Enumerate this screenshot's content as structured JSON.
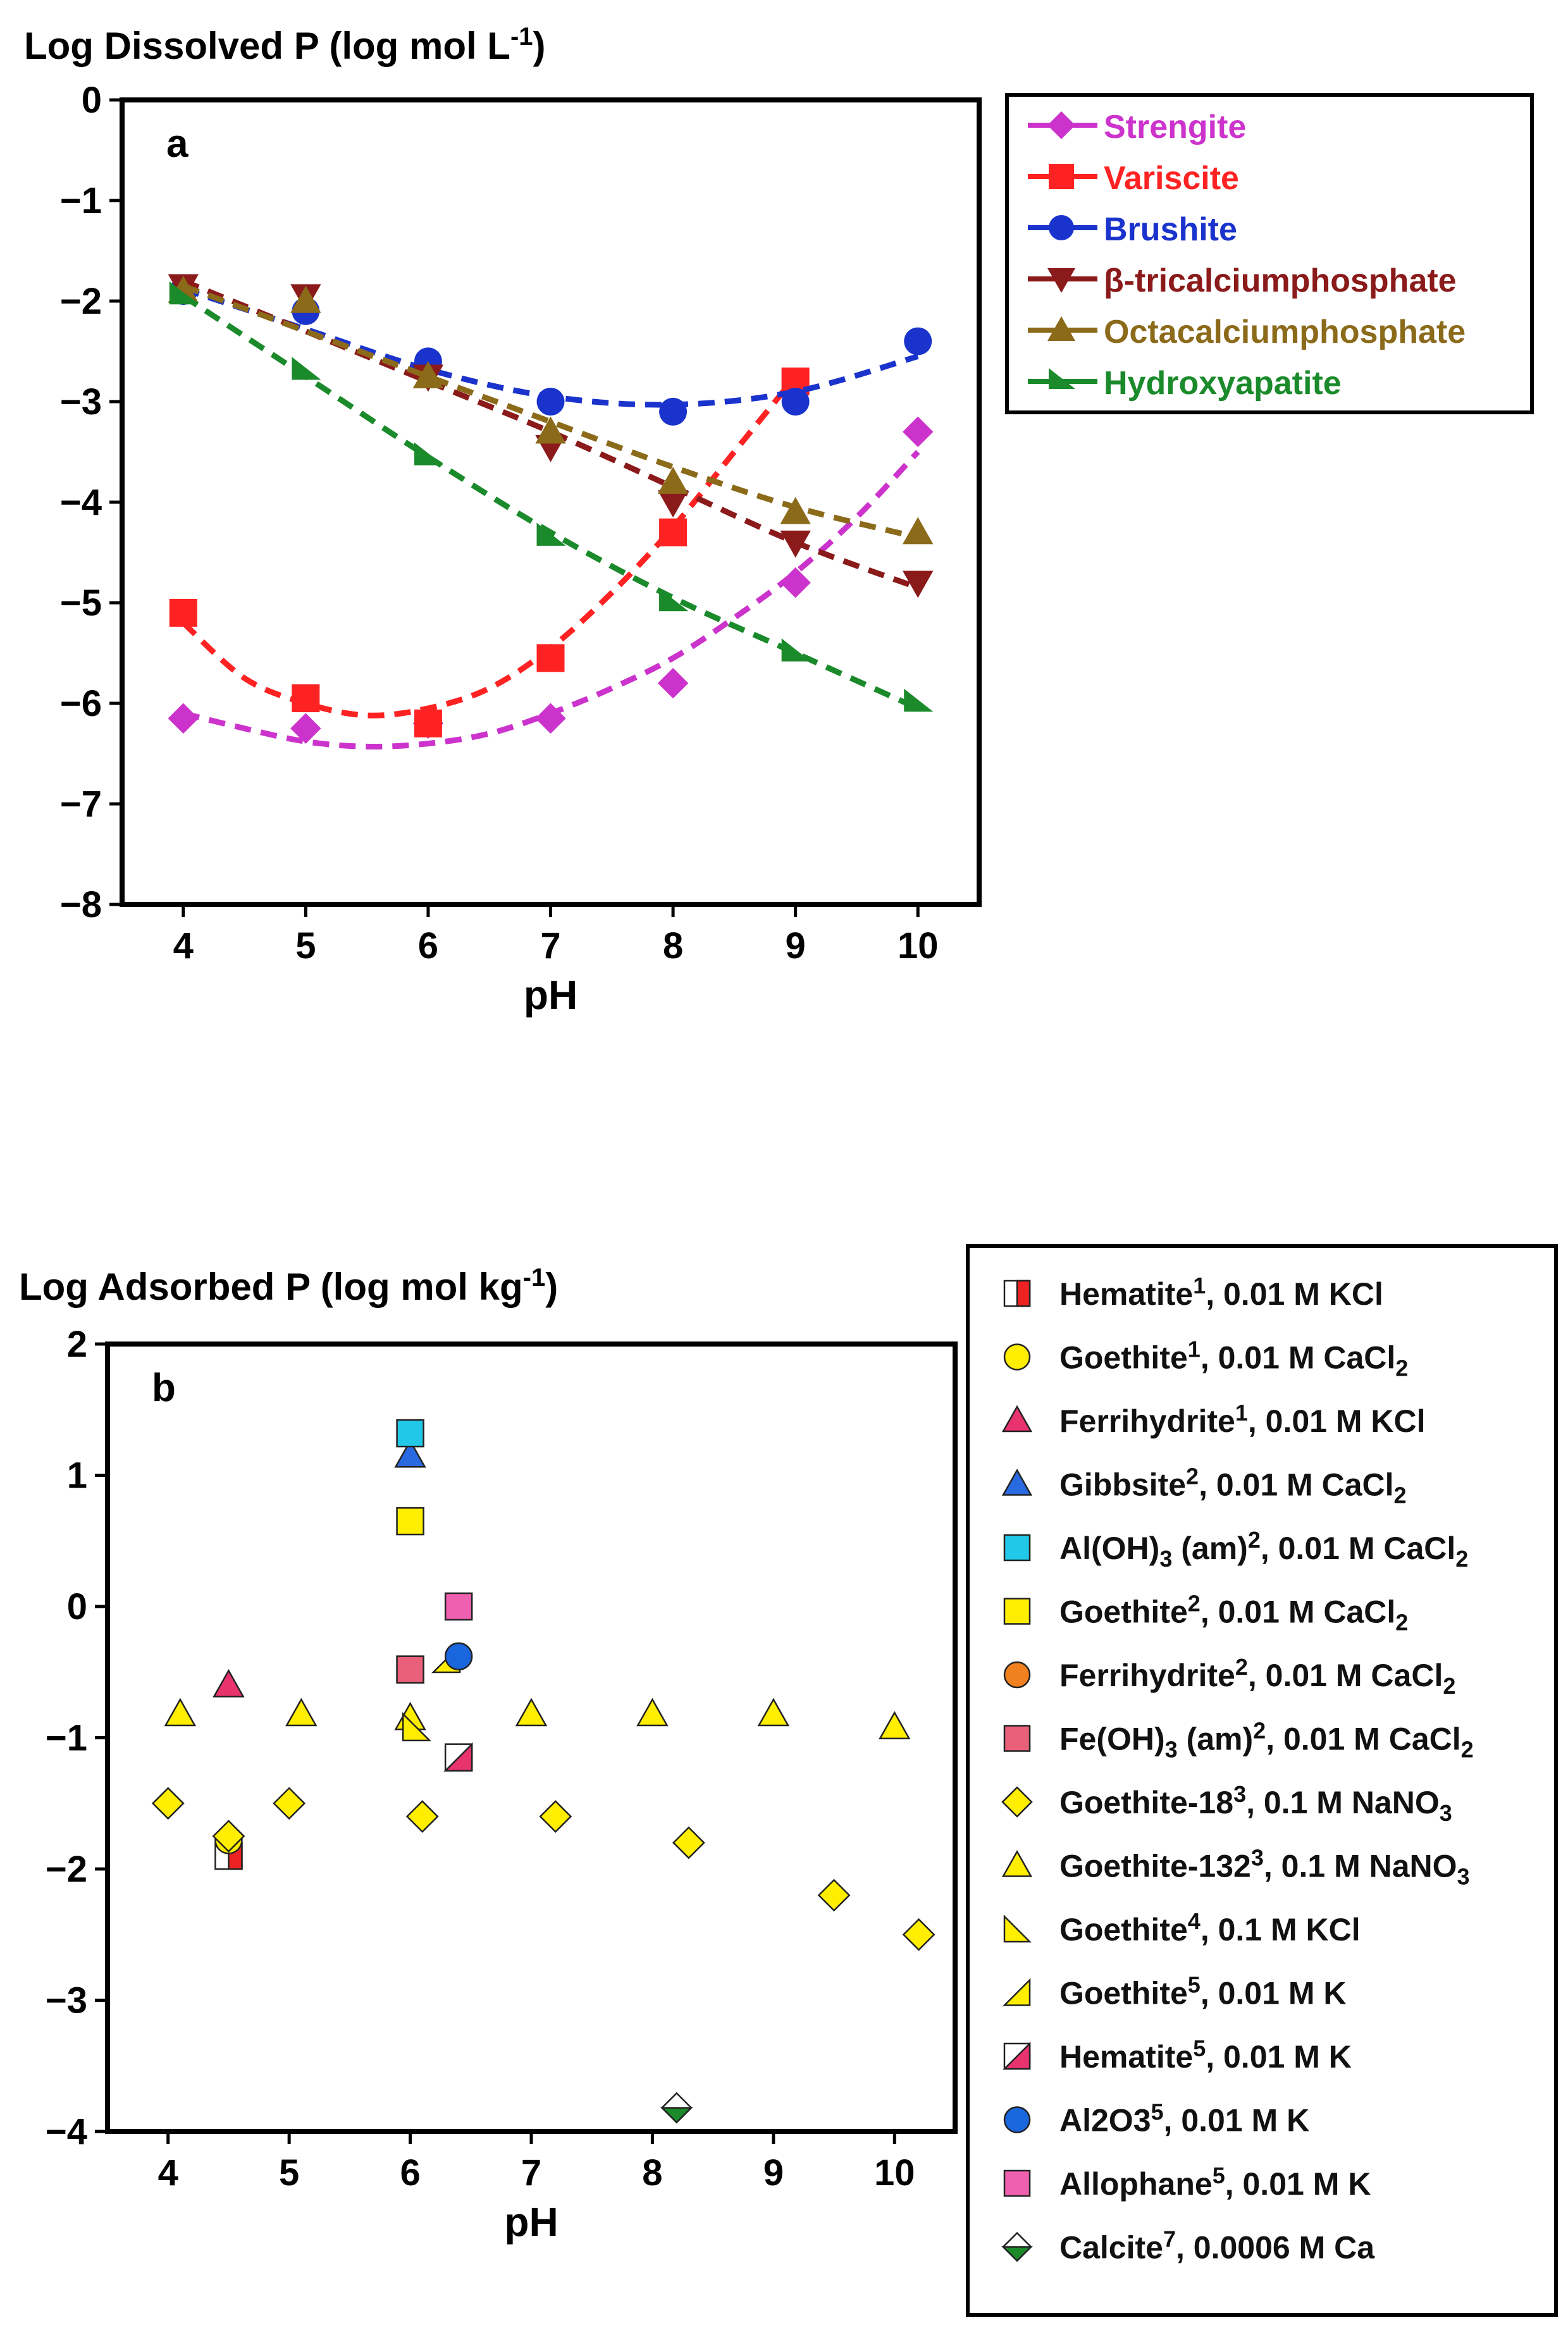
{
  "chart_data": [
    {
      "type": "line",
      "panel_label": "a",
      "ylabel": "Log Dissolved P (log mol L",
      "ylabel_sup": "-1",
      "ylabel_close": ")",
      "xlabel": "pH",
      "xlim": [
        3.5,
        10.5
      ],
      "ylim": [
        -8,
        0
      ],
      "xticks": [
        "4",
        "5",
        "6",
        "7",
        "8",
        "9",
        "10"
      ],
      "yticks": [
        "0",
        "−1",
        "−2",
        "−3",
        "−4",
        "−5",
        "−6",
        "−7",
        "−8"
      ],
      "legend_position": "outside-right",
      "series": [
        {
          "name": "Strengite",
          "color": "#cc33cc",
          "marker": "diamond",
          "points": [
            [
              4,
              -6.15
            ],
            [
              5,
              -6.25
            ],
            [
              6,
              -6.2
            ],
            [
              7,
              -6.15
            ],
            [
              8,
              -5.8
            ],
            [
              9,
              -4.8
            ],
            [
              10,
              -3.3
            ]
          ],
          "fit": [
            [
              4,
              -6.1
            ],
            [
              4.5,
              -6.25
            ],
            [
              5,
              -6.38
            ],
            [
              5.5,
              -6.43
            ],
            [
              6,
              -6.4
            ],
            [
              6.5,
              -6.3
            ],
            [
              7,
              -6.1
            ],
            [
              7.5,
              -5.85
            ],
            [
              8,
              -5.55
            ],
            [
              8.5,
              -5.15
            ],
            [
              9,
              -4.7
            ],
            [
              9.5,
              -4.15
            ],
            [
              10,
              -3.5
            ]
          ]
        },
        {
          "name": "Variscite",
          "color": "#ff2222",
          "marker": "square",
          "points": [
            [
              4,
              -5.1
            ],
            [
              5,
              -5.95
            ],
            [
              6,
              -6.2
            ],
            [
              7,
              -5.55
            ],
            [
              8,
              -4.3
            ],
            [
              9,
              -2.8
            ]
          ],
          "fit": [
            [
              4,
              -5.2
            ],
            [
              4.5,
              -5.75
            ],
            [
              5,
              -6.0
            ],
            [
              5.5,
              -6.12
            ],
            [
              6,
              -6.05
            ],
            [
              6.5,
              -5.85
            ],
            [
              7,
              -5.45
            ],
            [
              7.5,
              -4.9
            ],
            [
              8,
              -4.25
            ],
            [
              8.5,
              -3.5
            ],
            [
              9,
              -2.75
            ]
          ]
        },
        {
          "name": "Brushite",
          "color": "#1a33cc",
          "marker": "circle",
          "points": [
            [
              4,
              -1.9
            ],
            [
              5,
              -2.1
            ],
            [
              6,
              -2.6
            ],
            [
              7,
              -3.0
            ],
            [
              8,
              -3.1
            ],
            [
              9,
              -3.0
            ],
            [
              10,
              -2.4
            ]
          ],
          "fit": [
            [
              4,
              -1.88
            ],
            [
              5,
              -2.28
            ],
            [
              6,
              -2.68
            ],
            [
              7,
              -2.95
            ],
            [
              8,
              -3.03
            ],
            [
              9,
              -2.9
            ],
            [
              10,
              -2.55
            ]
          ]
        },
        {
          "name": "β-tricalciumphosphate",
          "color": "#8b1a1a",
          "marker": "triangle-down",
          "points": [
            [
              4,
              -1.85
            ],
            [
              5,
              -1.95
            ],
            [
              6,
              -2.75
            ],
            [
              7,
              -3.45
            ],
            [
              8,
              -4.0
            ],
            [
              9,
              -4.4
            ],
            [
              10,
              -4.8
            ]
          ],
          "fit": [
            [
              4,
              -1.8
            ],
            [
              5,
              -2.3
            ],
            [
              6,
              -2.8
            ],
            [
              7,
              -3.3
            ],
            [
              8,
              -3.85
            ],
            [
              9,
              -4.4
            ],
            [
              10,
              -4.85
            ]
          ]
        },
        {
          "name": "Octacalciumphosphate",
          "color": "#8b6a1a",
          "marker": "triangle-up",
          "points": [
            [
              4,
              -1.9
            ],
            [
              5,
              -2.0
            ],
            [
              6,
              -2.75
            ],
            [
              7,
              -3.3
            ],
            [
              8,
              -3.8
            ],
            [
              9,
              -4.1
            ],
            [
              10,
              -4.3
            ]
          ],
          "fit": [
            [
              4,
              -1.85
            ],
            [
              5,
              -2.3
            ],
            [
              6,
              -2.75
            ],
            [
              7,
              -3.2
            ],
            [
              8,
              -3.65
            ],
            [
              9,
              -4.05
            ],
            [
              10,
              -4.35
            ]
          ]
        },
        {
          "name": "Hydroxyapatite",
          "color": "#1a8a2a",
          "marker": "triangle-right",
          "points": [
            [
              4,
              -1.95
            ],
            [
              5,
              -2.7
            ],
            [
              6,
              -3.55
            ],
            [
              7,
              -4.35
            ],
            [
              8,
              -5.0
            ],
            [
              9,
              -5.5
            ],
            [
              10,
              -6.0
            ]
          ],
          "fit": [
            [
              4,
              -1.95
            ],
            [
              5,
              -2.75
            ],
            [
              6,
              -3.55
            ],
            [
              7,
              -4.3
            ],
            [
              8,
              -4.95
            ],
            [
              9,
              -5.5
            ],
            [
              10,
              -6.05
            ]
          ]
        }
      ]
    },
    {
      "type": "scatter",
      "panel_label": "b",
      "ylabel": "Log Adsorbed P (log mol kg",
      "ylabel_sup": "-1",
      "ylabel_close": ")",
      "xlabel": "pH",
      "xlim": [
        3.5,
        10.5
      ],
      "ylim": [
        -4,
        2
      ],
      "xticks": [
        "4",
        "5",
        "6",
        "7",
        "8",
        "9",
        "10"
      ],
      "yticks": [
        "2",
        "1",
        "0",
        "−1",
        "−2",
        "−3",
        "−4"
      ],
      "legend_position": "outside-right",
      "series": [
        {
          "name": "Hematite",
          "sup": "1",
          "rest": ", 0.01 M KCl",
          "marker": "square-half",
          "fill": "#ee2222",
          "points": [
            [
              4.5,
              -1.9
            ]
          ]
        },
        {
          "name": "Goethite",
          "sup": "1",
          "rest": ", 0.01 M CaCl",
          "sub": "2",
          "marker": "circle",
          "fill": "#ffee00",
          "points": [
            [
              4.5,
              -1.78
            ]
          ]
        },
        {
          "name": "Ferrihydrite",
          "sup": "1",
          "rest": ", 0.01 M KCl",
          "marker": "triangle-up",
          "fill": "#e8336e",
          "points": [
            [
              4.5,
              -0.6
            ]
          ]
        },
        {
          "name": "Gibbsite",
          "sup": "2",
          "rest": ", 0.01 M CaCl",
          "sub": "2",
          "marker": "triangle-up",
          "fill": "#2a6ae0",
          "points": [
            [
              6.0,
              1.15
            ]
          ]
        },
        {
          "name": "Al(OH)",
          "sub_mid": "3",
          "mid": " (am)",
          "sup": "2",
          "rest": ", 0.01 M CaCl",
          "sub": "2",
          "marker": "square",
          "fill": "#22c8e8",
          "points": [
            [
              6.0,
              1.32
            ]
          ]
        },
        {
          "name": "Goethite",
          "sup": "2",
          "rest": ", 0.01 M CaCl",
          "sub": "2",
          "marker": "square",
          "fill": "#ffee00",
          "points": [
            [
              6.0,
              0.65
            ]
          ]
        },
        {
          "name": "Ferrihydrite",
          "sup": "2",
          "rest": ", 0.01 M CaCl",
          "sub": "2",
          "marker": "circle",
          "fill": "#f08020",
          "points": []
        },
        {
          "name": "Fe(OH)",
          "sub_mid": "3",
          "mid": " (am)",
          "sup": "2",
          "rest": ", 0.01 M CaCl",
          "sub": "2",
          "marker": "square",
          "fill": "#e8607a",
          "points": [
            [
              6.0,
              -0.48
            ]
          ]
        },
        {
          "name": "Goethite-18",
          "sup": "3",
          "rest": ", 0.1 M NaNO",
          "sub": "3",
          "marker": "diamond",
          "fill": "#ffee00",
          "points": [
            [
              4.0,
              -1.5
            ],
            [
              4.5,
              -1.75
            ],
            [
              5.0,
              -1.5
            ],
            [
              6.1,
              -1.6
            ],
            [
              7.2,
              -1.6
            ],
            [
              8.3,
              -1.8
            ],
            [
              9.5,
              -2.2
            ],
            [
              10.2,
              -2.5
            ]
          ]
        },
        {
          "name": "Goethite-132",
          "sup": "3",
          "rest": ", 0.1 M NaNO",
          "sub": "3",
          "marker": "triangle-up",
          "fill": "#ffee00",
          "points": [
            [
              4.1,
              -0.82
            ],
            [
              5.1,
              -0.82
            ],
            [
              6.0,
              -0.85
            ],
            [
              7.0,
              -0.82
            ],
            [
              8.0,
              -0.82
            ],
            [
              9.0,
              -0.82
            ],
            [
              10.0,
              -0.92
            ]
          ]
        },
        {
          "name": "Goethite",
          "sup": "4",
          "rest": ", 0.1 M KCl",
          "marker": "corner-bl",
          "fill": "#ffee00",
          "points": [
            [
              6.05,
              -0.92
            ]
          ]
        },
        {
          "name": "Goethite",
          "sup": "5",
          "rest": ", 0.01 M K",
          "marker": "corner-br",
          "fill": "#ffee00",
          "points": [
            [
              6.3,
              -0.4
            ]
          ]
        },
        {
          "name": "Hematite",
          "sup": "5",
          "rest": ", 0.01 M K",
          "marker": "square-diag",
          "fill": "#e8336e",
          "points": [
            [
              6.4,
              -1.15
            ]
          ]
        },
        {
          "name": "Al2O3",
          "sup": "5",
          "rest": ", 0.01 M K",
          "marker": "circle",
          "fill": "#1a66dd",
          "points": [
            [
              6.4,
              -0.38
            ]
          ]
        },
        {
          "name": "Allophane",
          "sup": "5",
          "rest": ", 0.01 M K",
          "marker": "square",
          "fill": "#f060b0",
          "points": [
            [
              6.4,
              0.0
            ]
          ]
        },
        {
          "name": "Calcite",
          "sup": "7",
          "rest": ", 0.0006 M Ca",
          "marker": "diamond-half",
          "fill": "#1a8a2a",
          "points": [
            [
              8.2,
              -3.82
            ]
          ]
        }
      ]
    }
  ]
}
